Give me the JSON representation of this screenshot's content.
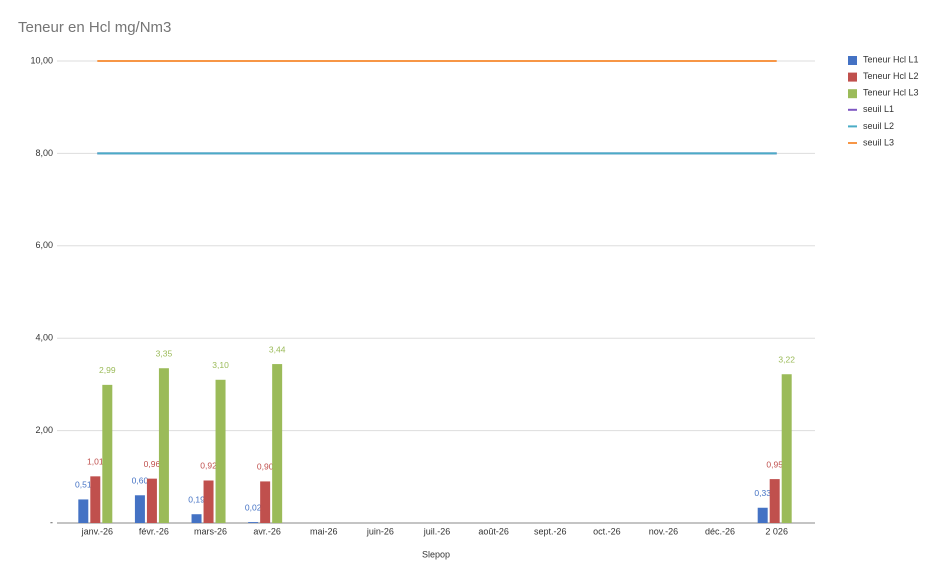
{
  "chart_data": {
    "type": "bar",
    "title": "Teneur en Hcl mg/Nm3",
    "x_label": "Slepop",
    "categories": [
      "janv.-26",
      "févr.-26",
      "mars-26",
      "avr.-26",
      "mai-26",
      "juin-26",
      "juil.-26",
      "août-26",
      "sept.-26",
      "oct.-26",
      "nov.-26",
      "déc.-26",
      "2 026"
    ],
    "series": [
      {
        "name": "Teneur Hcl L1",
        "type": "bar",
        "color": "#4472c4",
        "values": [
          0.51,
          0.6,
          0.19,
          0.02,
          null,
          null,
          null,
          null,
          null,
          null,
          null,
          null,
          0.33
        ],
        "value_labels": [
          "0,51",
          "0,60",
          "0,19",
          "0,02",
          null,
          null,
          null,
          null,
          null,
          null,
          null,
          null,
          "0,33"
        ]
      },
      {
        "name": "Teneur Hcl L2",
        "type": "bar",
        "color": "#c0504d",
        "values": [
          1.01,
          0.96,
          0.92,
          0.9,
          null,
          null,
          null,
          null,
          null,
          null,
          null,
          null,
          0.95
        ],
        "value_labels": [
          "1,01",
          "0,96",
          "0,92",
          "0,90",
          null,
          null,
          null,
          null,
          null,
          null,
          null,
          null,
          "0,95"
        ]
      },
      {
        "name": "Teneur Hcl L3",
        "type": "bar",
        "color": "#9bbb59",
        "values": [
          2.99,
          3.35,
          3.1,
          3.44,
          null,
          null,
          null,
          null,
          null,
          null,
          null,
          null,
          3.22
        ],
        "value_labels": [
          "2,99",
          "3,35",
          "3,10",
          "3,44",
          null,
          null,
          null,
          null,
          null,
          null,
          null,
          null,
          "3,22"
        ]
      },
      {
        "name": "seuil L1",
        "type": "line",
        "color": "#7e57c2",
        "values": [
          8,
          8,
          8,
          8,
          8,
          8,
          8,
          8,
          8,
          8,
          8,
          8,
          8
        ]
      },
      {
        "name": "seuil L2",
        "type": "line",
        "color": "#4bacc6",
        "values": [
          8,
          8,
          8,
          8,
          8,
          8,
          8,
          8,
          8,
          8,
          8,
          8,
          8
        ]
      },
      {
        "name": "seuil L3",
        "type": "line",
        "color": "#f79646",
        "values": [
          10,
          10,
          10,
          10,
          10,
          10,
          10,
          10,
          10,
          10,
          10,
          10,
          10
        ]
      }
    ],
    "ylim": [
      0,
      10
    ],
    "yticks": [
      {
        "value": 0,
        "label": "-"
      },
      {
        "value": 2,
        "label": "2,00"
      },
      {
        "value": 4,
        "label": "4,00"
      },
      {
        "value": 6,
        "label": "6,00"
      },
      {
        "value": 8,
        "label": "8,00"
      },
      {
        "value": 10,
        "label": "10,00"
      }
    ],
    "grid": true,
    "legend": "right"
  }
}
